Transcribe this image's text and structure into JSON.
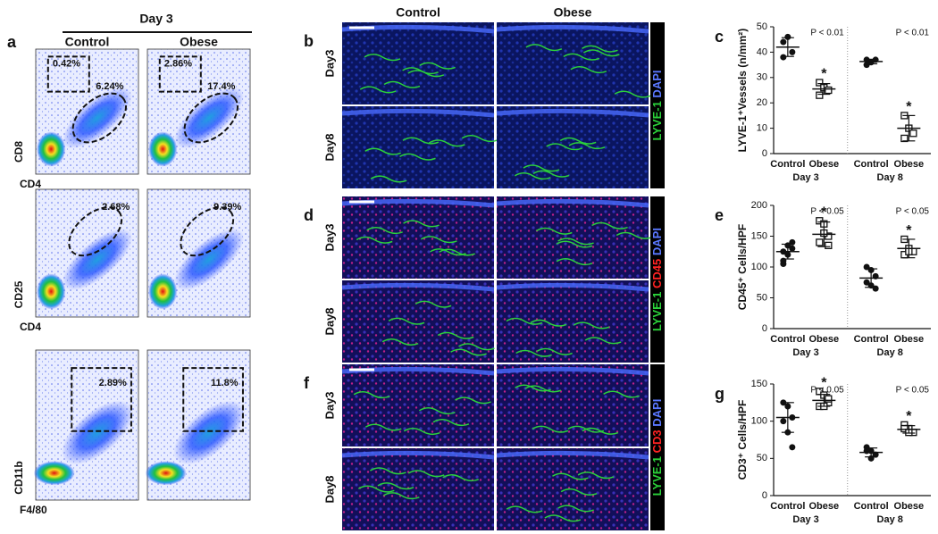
{
  "panel_a": {
    "label": "a",
    "day": "Day 3",
    "columns": [
      "Control",
      "Obese"
    ],
    "rows": [
      {
        "y_label": "CD8",
        "x_label": "CD4",
        "gates": [
          [
            "0.42%",
            "6.24%"
          ],
          [
            "2.86%",
            "17.4%"
          ]
        ]
      },
      {
        "y_label": "CD25",
        "x_label": "CD4",
        "gates": [
          [
            "2.68%"
          ],
          [
            "9.39%"
          ]
        ]
      },
      {
        "y_label": "CD11b",
        "x_label": "F4/80",
        "gates": [
          [
            "2.89%"
          ],
          [
            "11.8%"
          ]
        ]
      }
    ]
  },
  "histology": [
    {
      "label": "b",
      "columns": [
        "Control",
        "Obese"
      ],
      "rows": [
        "Day3",
        "Day8"
      ],
      "stains": [
        {
          "name": "LYVE-1",
          "color": "#2bd13a"
        },
        {
          "name": "DAPI",
          "color": "#5a78ff"
        }
      ]
    },
    {
      "label": "d",
      "rows": [
        "Day3",
        "Day8"
      ],
      "stains": [
        {
          "name": "LYVE-1",
          "color": "#2bd13a"
        },
        {
          "name": "CD45",
          "color": "#ff2323"
        },
        {
          "name": "DAPI",
          "color": "#5a78ff"
        }
      ]
    },
    {
      "label": "f",
      "rows": [
        "Day3",
        "Day8"
      ],
      "stains": [
        {
          "name": "LYVE-1",
          "color": "#2bd13a"
        },
        {
          "name": "CD3",
          "color": "#ff2323"
        },
        {
          "name": "DAPI",
          "color": "#5a78ff"
        }
      ]
    }
  ],
  "chart_data": [
    {
      "type": "scatter",
      "label": "c",
      "ylabel": "LYVE-1⁺Vessels (n/mm²)",
      "ylim": [
        0,
        50
      ],
      "yticks": [
        0,
        10,
        20,
        30,
        40,
        50
      ],
      "categories": [
        "Control",
        "Obese",
        "Control",
        "Obese"
      ],
      "groups": [
        "Day 3",
        "Day 8"
      ],
      "points": [
        [
          44,
          46,
          40,
          38
        ],
        [
          28,
          26,
          25,
          23
        ],
        [
          37,
          36,
          37,
          35
        ],
        [
          15,
          10,
          8,
          6
        ]
      ],
      "means": [
        42,
        25.5,
        36.3,
        10
      ],
      "sd": [
        3.7,
        2.1,
        0.9,
        5
      ],
      "p_values": [
        "P < 0.01",
        "P < 0.01"
      ],
      "significance": "*"
    },
    {
      "type": "scatter",
      "label": "e",
      "ylabel": "CD45⁺ Cells/HPF",
      "ylim": [
        0,
        200
      ],
      "yticks": [
        0,
        50,
        100,
        150,
        200
      ],
      "categories": [
        "Control",
        "Obese",
        "Control",
        "Obese"
      ],
      "groups": [
        "Day 3",
        "Day 8"
      ],
      "points": [
        [
          125,
          135,
          130,
          110,
          120,
          140,
          105
        ],
        [
          175,
          170,
          150,
          140,
          155,
          135
        ],
        [
          100,
          95,
          85,
          75,
          70,
          65
        ],
        [
          145,
          130,
          125,
          120,
          125
        ]
      ],
      "means": [
        125,
        153,
        82,
        130
      ],
      "sd": [
        12,
        20,
        15,
        15
      ],
      "p_values": [
        "P < 0.05",
        "P < 0.05"
      ],
      "significance": "*"
    },
    {
      "type": "scatter",
      "label": "g",
      "ylabel": "CD3⁺ Cells/HPF",
      "ylim": [
        0,
        150
      ],
      "yticks": [
        0,
        50,
        100,
        150
      ],
      "categories": [
        "Control",
        "Obese",
        "Control",
        "Obese"
      ],
      "groups": [
        "Day 3",
        "Day 8"
      ],
      "points": [
        [
          125,
          120,
          105,
          100,
          85,
          65
        ],
        [
          140,
          135,
          125,
          120,
          120,
          130
        ],
        [
          65,
          60,
          55,
          60,
          50
        ],
        [
          95,
          90,
          85,
          90,
          85
        ]
      ],
      "means": [
        105,
        128,
        58,
        89
      ],
      "sd": [
        20,
        8,
        6,
        5
      ],
      "p_values": [
        "P < 0.05",
        "P < 0.05"
      ],
      "significance": "*"
    }
  ]
}
